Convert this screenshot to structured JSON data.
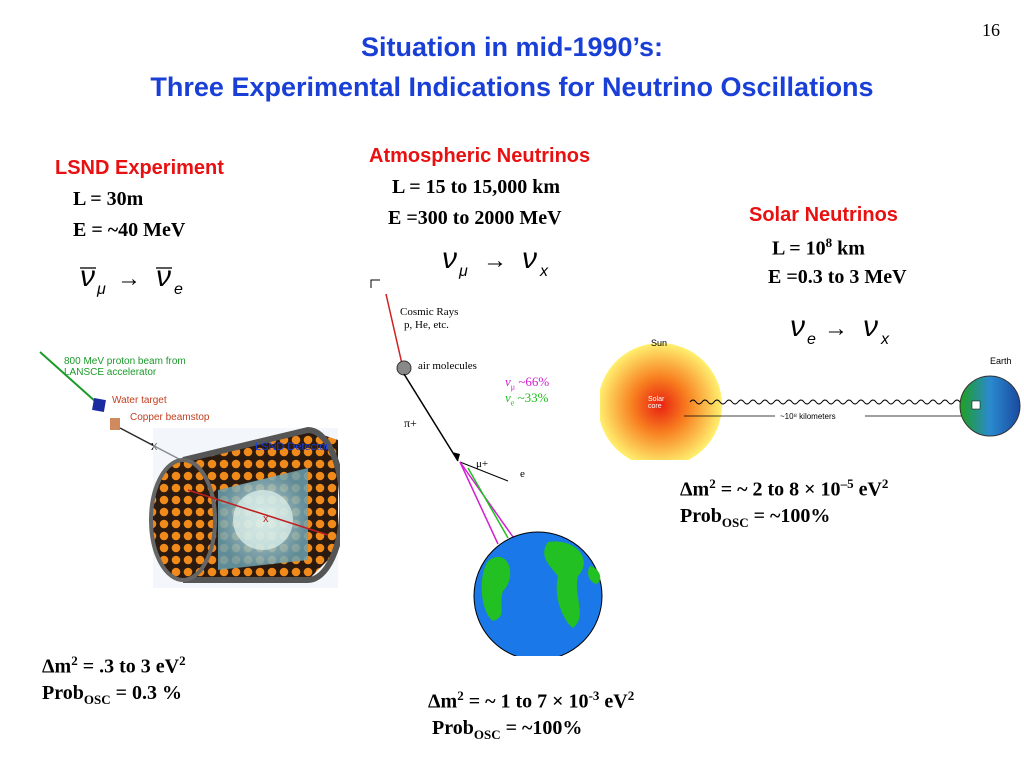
{
  "slide": {
    "page_number": "16",
    "title_line1": "Situation in mid-1990’s:",
    "title_line2": "Three Experimental Indications for Neutrino Oscillations"
  },
  "lsnd": {
    "heading": "LSND Experiment",
    "length": "L = 30m",
    "energy": "E = ~40 MeV",
    "fig": {
      "beam_label_1": "800 MeV proton beam from",
      "beam_label_2": "LANSCE accelerator",
      "water_target": "Water target",
      "copper_beamstop": "Copper beamstop",
      "detector": "LSND Detector"
    },
    "dm2_prefix": "Δm",
    "dm2_value": " = .3 to 3 eV",
    "prob_prefix": "Prob",
    "prob_sub": "OSC",
    "prob_value": " = 0.3 %"
  },
  "atmospheric": {
    "heading": "Atmospheric Neutrinos",
    "length": "L = 15 to 15,000 km",
    "energy": "E =300 to 2000 MeV",
    "fig": {
      "cosmic_rays": "Cosmic Rays",
      "particles": "p, He, etc.",
      "air_molecules": "air molecules",
      "numu_frac": "~66%",
      "nue_frac": "~33%",
      "pion": "π+",
      "muon": "μ+",
      "electron": "e"
    },
    "dm2_prefix": "Δm",
    "dm2_value": " = ~ 1 to 7 × 10",
    "dm2_exp": "-3",
    "dm2_unit": " eV",
    "prob_prefix": "Prob",
    "prob_sub": "OSC",
    "prob_value": " = ~100%"
  },
  "solar": {
    "heading": "Solar Neutrinos",
    "length_prefix": "L = 10",
    "length_exp": "8",
    "length_unit": " km",
    "energy": "E =0.3 to 3 MeV",
    "fig": {
      "sun": "Sun",
      "earth": "Earth",
      "solar_core": "Solar core",
      "distance": "~10⁸ kilometers"
    },
    "dm2_prefix": "Δm",
    "dm2_value": " = ~ 2 to 8 × 10",
    "dm2_exp": "–5",
    "dm2_unit": " eV",
    "prob_prefix": "Prob",
    "prob_sub": "OSC",
    "prob_value": " = ~100%"
  },
  "colors": {
    "title": "#1a3fd6",
    "section_heading": "#e81010"
  }
}
